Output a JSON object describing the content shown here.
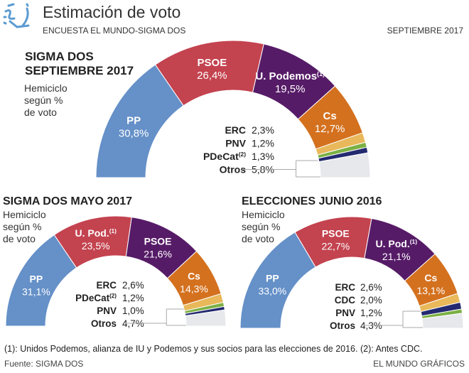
{
  "header": {
    "title": "Estimación de voto",
    "subtitle": "ENCUESTA EL MUNDO-SIGMA DOS",
    "date": "SEPTIEMBRE 2017",
    "logo_icon": "el-mundo-logo-icon"
  },
  "colors": {
    "PP": "#6590c8",
    "PSOE": "#c3434f",
    "UPodemos": "#561b67",
    "Cs": "#d4711f",
    "ERC": "#e8b85a",
    "PNV": "#7bb043",
    "PDeCat": "#242a70",
    "CDC": "#242a70",
    "Otros": "#e7e8ec",
    "connector": "#a9a9a9"
  },
  "chart_data": [
    {
      "type": "pie",
      "subtype": "hemicycle",
      "title": "SIGMA DOS SEPTIEMBRE 2017",
      "title_lines": [
        "SIGMA DOS",
        "SEPTIEMBRE 2017"
      ],
      "subtitle_lines": [
        "Hemiciclo",
        "según %",
        "de voto"
      ],
      "unit": "%",
      "slices": [
        {
          "name": "PP",
          "label": "PP",
          "sup": "",
          "value": 30.8,
          "value_label": "30,8%",
          "color_key": "PP",
          "labeled_inside": true
        },
        {
          "name": "PSOE",
          "label": "PSOE",
          "sup": "",
          "value": 26.4,
          "value_label": "26,4%",
          "color_key": "PSOE",
          "labeled_inside": true
        },
        {
          "name": "U. Podemos",
          "label": "U. Podemos",
          "sup": "(1)",
          "value": 19.5,
          "value_label": "19,5%",
          "color_key": "UPodemos",
          "labeled_inside": true
        },
        {
          "name": "Cs",
          "label": "Cs",
          "sup": "",
          "value": 12.7,
          "value_label": "12,7%",
          "color_key": "Cs",
          "labeled_inside": true
        },
        {
          "name": "ERC",
          "label": "ERC",
          "sup": "",
          "value": 2.3,
          "value_label": "2,3%",
          "color_key": "ERC",
          "labeled_inside": false
        },
        {
          "name": "PNV",
          "label": "PNV",
          "sup": "",
          "value": 1.2,
          "value_label": "1,2%",
          "color_key": "PNV",
          "labeled_inside": false
        },
        {
          "name": "PDeCat",
          "label": "PDeCat",
          "sup": "(2)",
          "value": 1.3,
          "value_label": "1,3%",
          "color_key": "PDeCat",
          "labeled_inside": false
        },
        {
          "name": "Otros",
          "label": "Otros",
          "sup": "",
          "value": 5.8,
          "value_label": "5,8%",
          "color_key": "Otros",
          "labeled_inside": false
        }
      ]
    },
    {
      "type": "pie",
      "subtype": "hemicycle",
      "title": "SIGMA DOS MAYO 2017",
      "title_lines": [
        "SIGMA DOS MAYO 2017"
      ],
      "subtitle_lines": [
        "Hemiciclo",
        "según %",
        "de voto"
      ],
      "unit": "%",
      "slices": [
        {
          "name": "PP",
          "label": "PP",
          "sup": "",
          "value": 31.1,
          "value_label": "31,1%",
          "color_key": "PP",
          "labeled_inside": true
        },
        {
          "name": "U. Pod.",
          "label": "U. Pod.",
          "sup": "(1)",
          "value": 23.5,
          "value_label": "23,5%",
          "color_key": "PSOE",
          "labeled_inside": true
        },
        {
          "name": "PSOE",
          "label": "PSOE",
          "sup": "",
          "value": 21.6,
          "value_label": "21,6%",
          "color_key": "UPodemos",
          "labeled_inside": true
        },
        {
          "name": "Cs",
          "label": "Cs",
          "sup": "",
          "value": 14.3,
          "value_label": "14,3%",
          "color_key": "Cs",
          "labeled_inside": true
        },
        {
          "name": "ERC",
          "label": "ERC",
          "sup": "",
          "value": 2.6,
          "value_label": "2,6%",
          "color_key": "ERC",
          "labeled_inside": false
        },
        {
          "name": "PDeCat",
          "label": "PDeCat",
          "sup": "(2)",
          "value": 1.2,
          "value_label": "1,2%",
          "color_key": "PNV",
          "labeled_inside": false
        },
        {
          "name": "PNV",
          "label": "PNV",
          "sup": "",
          "value": 1.0,
          "value_label": "1,0%",
          "color_key": "PDeCat",
          "labeled_inside": false
        },
        {
          "name": "Otros",
          "label": "Otros",
          "sup": "",
          "value": 4.7,
          "value_label": "4,7%",
          "color_key": "Otros",
          "labeled_inside": false
        }
      ]
    },
    {
      "type": "pie",
      "subtype": "hemicycle",
      "title": "ELECCIONES JUNIO 2016",
      "title_lines": [
        "ELECCIONES JUNIO 2016"
      ],
      "subtitle_lines": [
        "Hemiciclo",
        "según %",
        "de voto"
      ],
      "unit": "%",
      "slices": [
        {
          "name": "PP",
          "label": "PP",
          "sup": "",
          "value": 33.0,
          "value_label": "33,0%",
          "color_key": "PP",
          "labeled_inside": true
        },
        {
          "name": "PSOE",
          "label": "PSOE",
          "sup": "",
          "value": 22.7,
          "value_label": "22,7%",
          "color_key": "PSOE",
          "labeled_inside": true
        },
        {
          "name": "U. Pod.",
          "label": "U. Pod.",
          "sup": "(1)",
          "value": 21.1,
          "value_label": "21,1%",
          "color_key": "UPodemos",
          "labeled_inside": true
        },
        {
          "name": "Cs",
          "label": "Cs",
          "sup": "",
          "value": 13.1,
          "value_label": "13,1%",
          "color_key": "Cs",
          "labeled_inside": true
        },
        {
          "name": "ERC",
          "label": "ERC",
          "sup": "",
          "value": 2.6,
          "value_label": "2,6%",
          "color_key": "ERC",
          "labeled_inside": false
        },
        {
          "name": "CDC",
          "label": "CDC",
          "sup": "",
          "value": 2.0,
          "value_label": "2,0%",
          "color_key": "CDC",
          "labeled_inside": false
        },
        {
          "name": "PNV",
          "label": "PNV",
          "sup": "",
          "value": 1.2,
          "value_label": "1,2%",
          "color_key": "PNV",
          "labeled_inside": false
        },
        {
          "name": "Otros",
          "label": "Otros",
          "sup": "",
          "value": 4.3,
          "value_label": "4,3%",
          "color_key": "Otros",
          "labeled_inside": false
        }
      ]
    }
  ],
  "footer": {
    "footnote": "(1): Unidos Podemos, alianza de IU y Podemos y sus socios para las elecciones de 2016. (2): Antes CDC.",
    "source": "Fuente: SIGMA DOS",
    "credit": "EL MUNDO GRÁFICOS"
  }
}
